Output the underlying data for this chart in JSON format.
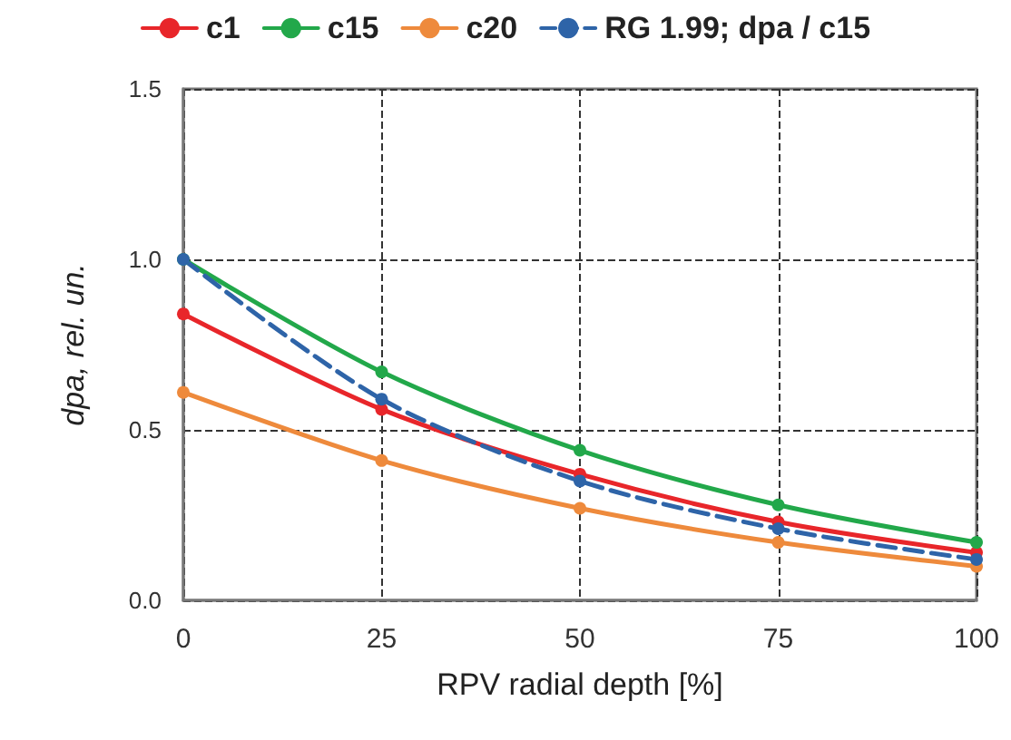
{
  "chart_data": {
    "type": "line",
    "xlabel": "RPV radial depth [%]",
    "ylabel": "dpa, rel. un.",
    "x": [
      0,
      25,
      50,
      75,
      100
    ],
    "series": [
      {
        "name": "c1",
        "color": "#e8262a",
        "values": [
          0.84,
          0.56,
          0.37,
          0.23,
          0.14
        ]
      },
      {
        "name": "c15",
        "color": "#22a84a",
        "values": [
          1.0,
          0.67,
          0.44,
          0.28,
          0.17
        ]
      },
      {
        "name": "c20",
        "color": "#ee8a3c",
        "values": [
          0.61,
          0.41,
          0.27,
          0.17,
          0.1
        ]
      },
      {
        "name": "RG 1.99; dpa / c15",
        "color": "#2e64a8",
        "values": [
          1.0,
          0.59,
          0.35,
          0.21,
          0.12
        ],
        "line_style": "dashed"
      }
    ],
    "xlim": [
      0,
      100
    ],
    "xticks": [
      0,
      25,
      50,
      75,
      100
    ],
    "ylim": [
      0,
      1.5
    ],
    "yticks": [
      "0.0",
      0.5,
      "1.0",
      1.5
    ],
    "grid": true,
    "legend": "top",
    "marker": "circle"
  }
}
